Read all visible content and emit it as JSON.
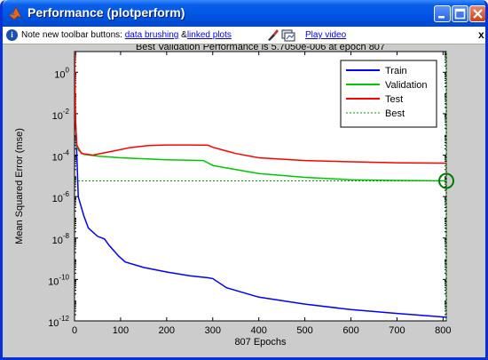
{
  "window": {
    "title": "Performance (plotperform)"
  },
  "infobar": {
    "note_prefix": "Note new toolbar buttons:",
    "link1": "data brushing",
    "amp": "&",
    "link2": "linked plots",
    "play_video": "Play video",
    "close": "x"
  },
  "colors": {
    "train": "#0000ff",
    "validation": "#00c800",
    "test": "#ff0000",
    "best": "#00a000"
  },
  "chart_data": {
    "type": "line",
    "title": "Best Validation Performance is 5.7050e-006 at epoch 807",
    "xlabel": "807 Epochs",
    "ylabel": "Mean Squared Error  (mse)",
    "xlim": [
      0,
      807
    ],
    "ylim": [
      1e-12,
      10.0
    ],
    "yscale": "log",
    "x_ticks": [
      0,
      100,
      200,
      300,
      400,
      500,
      600,
      700,
      800
    ],
    "y_ticks": [
      {
        "value": 1.0,
        "base": "10",
        "exp": "0"
      },
      {
        "value": 0.01,
        "base": "10",
        "exp": "-2"
      },
      {
        "value": 0.0001,
        "base": "10",
        "exp": "-4"
      },
      {
        "value": 1e-06,
        "base": "10",
        "exp": "-6"
      },
      {
        "value": 1e-08,
        "base": "10",
        "exp": "-8"
      },
      {
        "value": 1e-10,
        "base": "10",
        "exp": "-10"
      },
      {
        "value": 1e-12,
        "base": "10",
        "exp": "-12"
      }
    ],
    "grid": false,
    "legend_position": "top-right",
    "series": [
      {
        "name": "Train",
        "style": "solid",
        "x": [
          0,
          2,
          5,
          8,
          12,
          20,
          30,
          50,
          65,
          75,
          95,
          110,
          150,
          200,
          250,
          290,
          300,
          330,
          400,
          500,
          600,
          700,
          807
        ],
        "y": [
          10,
          0.01,
          0.0001,
          1e-06,
          5e-07,
          1.2e-07,
          3e-08,
          1.2e-08,
          9e-09,
          4.5e-09,
          1.4e-09,
          7e-10,
          3.8e-10,
          2.3e-10,
          1.5e-10,
          1.2e-10,
          1.1e-10,
          4e-11,
          1.4e-11,
          6.5e-12,
          3.5e-12,
          2.3e-12,
          1.5e-12
        ]
      },
      {
        "name": "Validation",
        "style": "solid",
        "x": [
          0,
          2,
          5,
          10,
          20,
          50,
          100,
          200,
          280,
          300,
          350,
          400,
          500,
          600,
          700,
          807
        ],
        "y": [
          10,
          0.005,
          0.00025,
          0.00016,
          0.00011,
          9e-05,
          7.5e-05,
          6e-05,
          5.5e-05,
          3.2e-05,
          2e-05,
          1.3e-05,
          8.5e-06,
          6.5e-06,
          6e-06,
          5.7e-06
        ]
      },
      {
        "name": "Test",
        "style": "solid",
        "x": [
          0,
          2,
          5,
          15,
          40,
          80,
          120,
          160,
          200,
          250,
          290,
          300,
          350,
          400,
          500,
          600,
          700,
          807
        ],
        "y": [
          10,
          0.005,
          0.0003,
          0.00012,
          0.0001,
          0.00015,
          0.00023,
          0.00029,
          0.00031,
          0.00031,
          0.0003,
          0.00024,
          0.00012,
          7.5e-05,
          5.5e-05,
          4.8e-05,
          4.3e-05,
          4.1e-05
        ]
      },
      {
        "name": "Best",
        "style": "dotted",
        "x": [
          0,
          807
        ],
        "y": [
          5.705e-06,
          5.705e-06
        ]
      }
    ],
    "best_point": {
      "x": 807,
      "y": 5.705e-06
    }
  }
}
